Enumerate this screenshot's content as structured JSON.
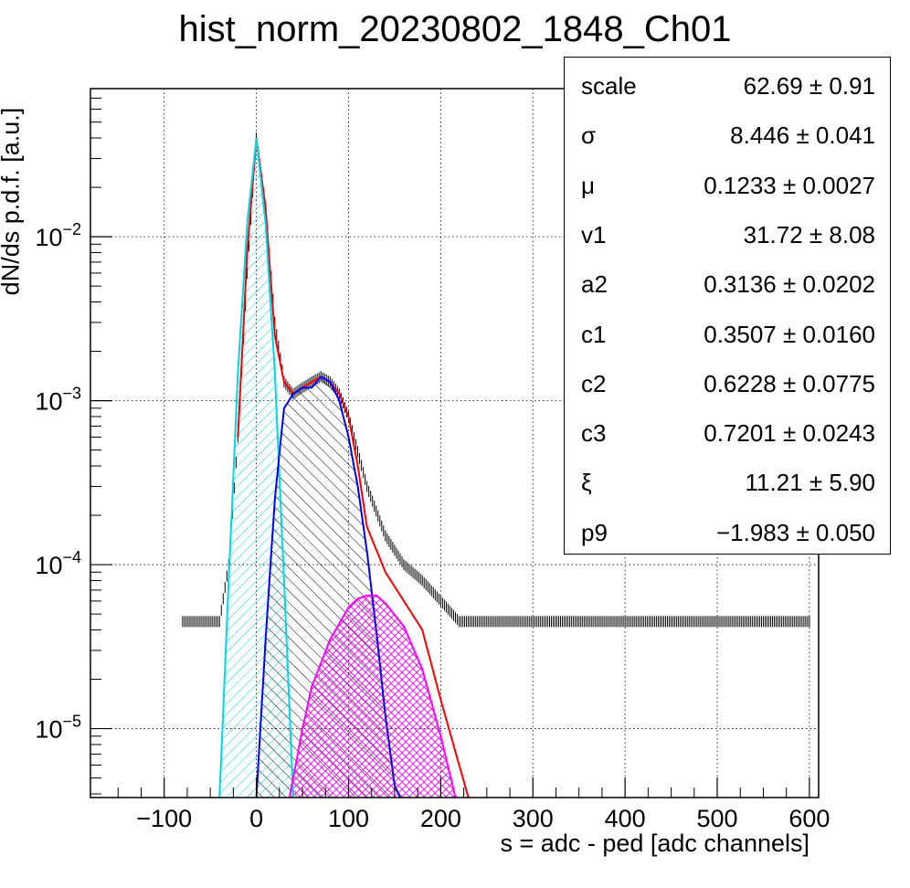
{
  "chart_data": {
    "type": "histogram",
    "title": "hist_norm_20230802_1848_Ch01",
    "xlabel": "s = adc - ped [adc channels]",
    "ylabel": "dN/ds p.d.f. [a.u.]",
    "xlim": [
      -180,
      610
    ],
    "ylim": [
      3.8e-06,
      0.08
    ],
    "yscale": "log",
    "grid": true,
    "x_ticks": [
      -100,
      0,
      100,
      200,
      300,
      400,
      500,
      600
    ],
    "y_ticks": [
      {
        "value": 1e-05,
        "base": "10",
        "exp": "−5"
      },
      {
        "value": 0.0001,
        "base": "10",
        "exp": "−4"
      },
      {
        "value": 0.001,
        "base": "10",
        "exp": "−3"
      },
      {
        "value": 0.01,
        "base": "10",
        "exp": "−2"
      }
    ],
    "series": [
      {
        "color": "#000000",
        "style": "histogram",
        "x": [
          -80,
          -60,
          -40,
          -30,
          -20,
          -10,
          0,
          10,
          20,
          30,
          40,
          50,
          60,
          70,
          80,
          90,
          100,
          120,
          140,
          160,
          180,
          200,
          220,
          250,
          300,
          400,
          500,
          600
        ],
        "y": [
          4.5e-05,
          4.5e-05,
          4.5e-05,
          0.0001,
          0.0006,
          0.006,
          0.04,
          0.015,
          0.003,
          0.0013,
          0.0011,
          0.0012,
          0.0013,
          0.0014,
          0.0013,
          0.0011,
          0.0008,
          0.0003,
          0.00015,
          0.0001,
          8e-05,
          6e-05,
          4.5e-05,
          4.5e-05,
          4.5e-05,
          4.5e-05,
          4.5e-05,
          4.5e-05
        ]
      },
      {
        "color": "#ff0000",
        "style": "line",
        "x": [
          -20,
          -10,
          0,
          10,
          20,
          30,
          40,
          50,
          60,
          70,
          80,
          90,
          100,
          110,
          120,
          140,
          160,
          180,
          200,
          220,
          230
        ],
        "y": [
          0.0006,
          0.008,
          0.04,
          0.015,
          0.0025,
          0.0013,
          0.0011,
          0.0012,
          0.0013,
          0.0014,
          0.0013,
          0.0011,
          0.0008,
          0.0004,
          0.00017,
          9e-05,
          6e-05,
          4e-05,
          1.5e-05,
          6e-06,
          3.8e-06
        ]
      },
      {
        "color": "#00d7e6",
        "style": "filled-hatched",
        "x": [
          -40,
          -30,
          -20,
          -10,
          0,
          10,
          20,
          30,
          40
        ],
        "y": [
          3.8e-06,
          8e-05,
          0.0015,
          0.012,
          0.04,
          0.012,
          0.0015,
          8e-05,
          3.8e-06
        ]
      },
      {
        "color": "#0000ff",
        "style": "filled-hatched",
        "x": [
          0,
          10,
          20,
          30,
          40,
          50,
          60,
          70,
          80,
          90,
          100,
          110,
          120,
          130,
          140,
          150,
          156
        ],
        "y": [
          3.8e-06,
          3.5e-05,
          0.00025,
          0.0009,
          0.0011,
          0.0012,
          0.0012,
          0.0014,
          0.0013,
          0.001,
          0.0006,
          0.0003,
          0.00012,
          4e-05,
          1.2e-05,
          4.5e-06,
          3.8e-06
        ]
      },
      {
        "color": "#ff00ff",
        "style": "filled-hatched",
        "x": [
          36,
          50,
          60,
          80,
          100,
          110,
          120,
          130,
          140,
          160,
          180,
          200,
          216
        ],
        "y": [
          3.8e-06,
          1e-05,
          1.8e-05,
          3.5e-05,
          5.5e-05,
          6.2e-05,
          6.5e-05,
          6.5e-05,
          5.8e-05,
          4.2e-05,
          2.3e-05,
          9e-06,
          3.8e-06
        ]
      }
    ],
    "stats": [
      {
        "name": "scale",
        "value": "62.69 ± 0.91"
      },
      {
        "name": "σ",
        "value": "8.446 ± 0.041"
      },
      {
        "name": "μ",
        "value": "0.1233 ± 0.0027"
      },
      {
        "name": "v1",
        "value": "31.72 ± 8.08"
      },
      {
        "name": "a2",
        "value": "0.3136 ± 0.0202"
      },
      {
        "name": "c1",
        "value": "0.3507 ± 0.0160"
      },
      {
        "name": "c2",
        "value": "0.6228 ± 0.0775"
      },
      {
        "name": "c3",
        "value": "0.7201 ± 0.0243"
      },
      {
        "name": "ξ",
        "value": "11.21 ± 5.90"
      },
      {
        "name": "p9",
        "value": "−1.983 ± 0.050"
      }
    ]
  }
}
